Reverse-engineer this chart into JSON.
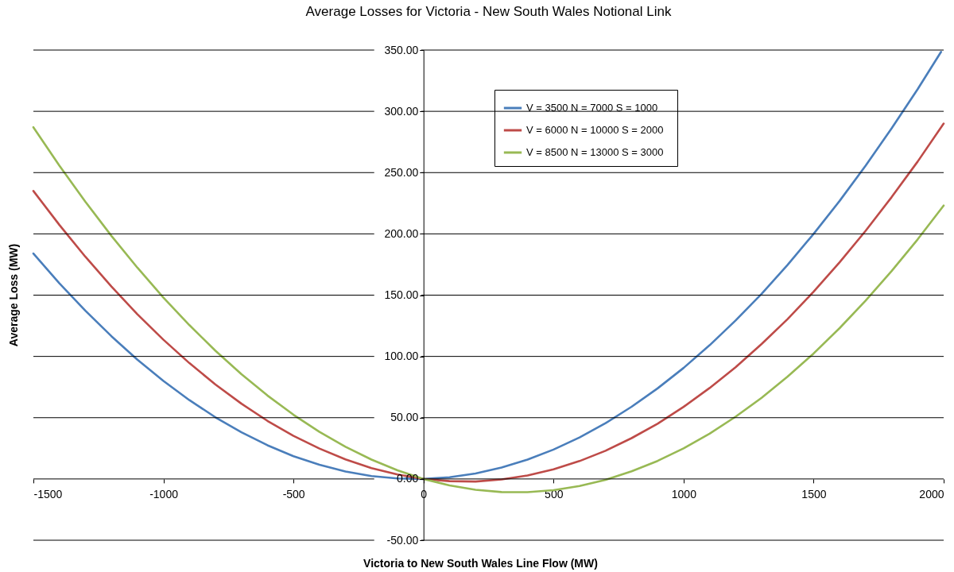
{
  "chart_data": {
    "type": "line",
    "title": "Average Losses for Victoria - New South Wales Notional Link",
    "xlabel": "Victoria to New South Wales Line Flow (MW)",
    "ylabel": "Average Loss (MW)",
    "x": [
      -1500,
      -1400,
      -1300,
      -1200,
      -1100,
      -1000,
      -900,
      -800,
      -700,
      -600,
      -500,
      -400,
      -300,
      -200,
      -100,
      0,
      100,
      200,
      300,
      400,
      500,
      600,
      700,
      800,
      900,
      1000,
      1100,
      1200,
      1300,
      1400,
      1500,
      1600,
      1700,
      1800,
      1900,
      2000
    ],
    "series": [
      {
        "name": "V = 3500  N = 7000  S = 1000",
        "color": "#4a7ebb",
        "x": [
          -1500,
          -1400,
          -1300,
          -1200,
          -1100,
          -1000,
          -900,
          -800,
          -700,
          -600,
          -500,
          -400,
          -300,
          -200,
          -100,
          0,
          100,
          200,
          300,
          400,
          500,
          600,
          700,
          800,
          900,
          1000,
          1100,
          1200,
          1300,
          1400,
          1500,
          1600,
          1700,
          1800,
          1900,
          1990
        ],
        "values": [
          184.0,
          159.7,
          137.3,
          116.5,
          97.3,
          80.0,
          64.3,
          50.3,
          38.1,
          27.5,
          18.6,
          11.6,
          6.1,
          2.3,
          0.4,
          0,
          1.4,
          4.5,
          9.3,
          15.8,
          24.0,
          33.9,
          45.5,
          58.9,
          73.9,
          90.6,
          109.1,
          129.3,
          151.1,
          174.7,
          200.0,
          226.9,
          255.7,
          286.1,
          318.1,
          348.5
        ]
      },
      {
        "name": "V = 6000  N = 10000  S = 2000",
        "color": "#be4b48",
        "values": [
          235.0,
          207.3,
          181.3,
          157.0,
          134.4,
          113.6,
          94.5,
          77.1,
          61.4,
          47.4,
          35.2,
          24.8,
          16.0,
          8.9,
          3.6,
          0,
          -1.8,
          -2.1,
          -0.4,
          2.8,
          7.8,
          14.6,
          23.0,
          33.3,
          45.1,
          58.8,
          74.2,
          91.2,
          110.1,
          130.5,
          152.8,
          176.8,
          202.5,
          230.0,
          259.0,
          290.0
        ]
      },
      {
        "name": "V = 8500  N = 13000  S = 3000",
        "color": "#98b954",
        "values": [
          287.0,
          255.7,
          226.2,
          198.4,
          172.4,
          148.0,
          125.5,
          104.6,
          85.5,
          68.1,
          52.4,
          38.4,
          26.3,
          15.8,
          7.1,
          0,
          -5.3,
          -8.8,
          -10.7,
          -10.8,
          -9.2,
          -5.7,
          -0.7,
          6.2,
          14.7,
          25.0,
          37.0,
          50.8,
          66.2,
          83.5,
          102.4,
          123.1,
          145.5,
          169.7,
          195.5,
          223.1
        ]
      }
    ],
    "xlim": [
      -1500,
      2000
    ],
    "xticks": [
      -1500,
      -1000,
      -500,
      0,
      500,
      1000,
      1500,
      2000
    ],
    "ylim": [
      -50,
      350
    ],
    "yticks": [
      {
        "value": -50,
        "label": "-50.00"
      },
      {
        "value": 0,
        "label": "0.00"
      },
      {
        "value": 50,
        "label": "50.00"
      },
      {
        "value": 100,
        "label": "100.00"
      },
      {
        "value": 150,
        "label": "150.00"
      },
      {
        "value": 200,
        "label": "200.00"
      },
      {
        "value": 250,
        "label": "250.00"
      },
      {
        "value": 300,
        "label": "300.00"
      },
      {
        "value": 350,
        "label": "350.00"
      }
    ],
    "grid": "y",
    "legend": "top right",
    "marker": "none",
    "line_style": "solid"
  }
}
